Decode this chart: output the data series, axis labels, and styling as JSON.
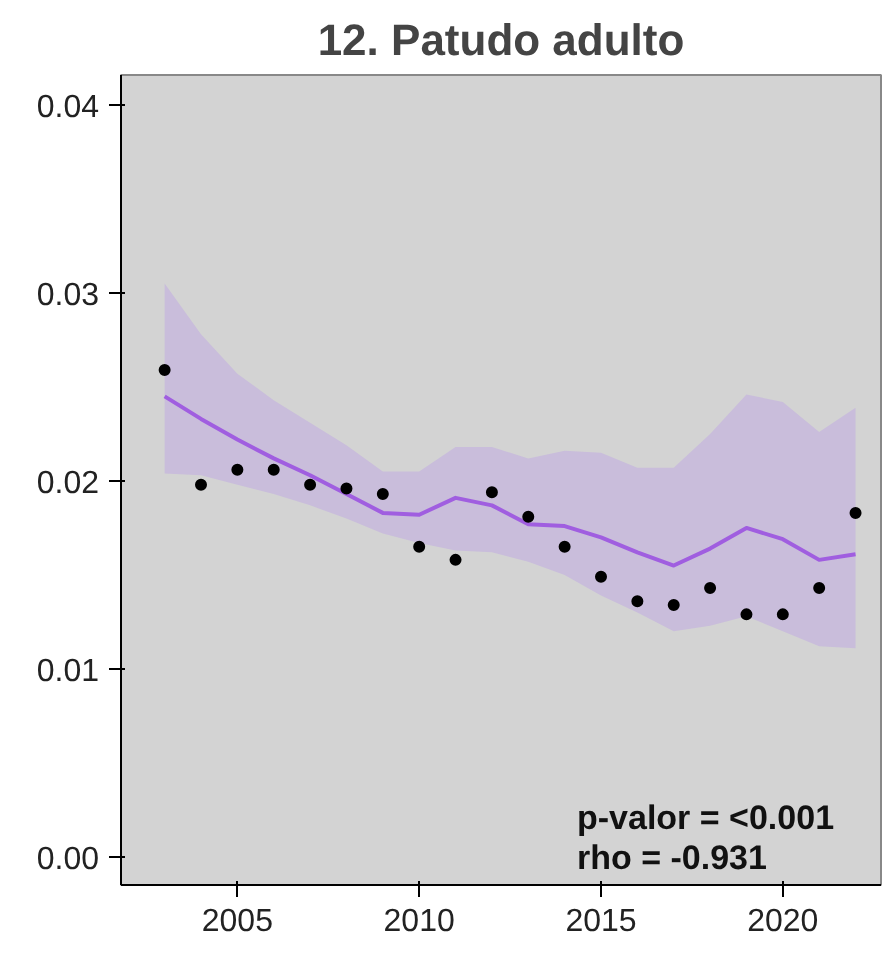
{
  "chart_data": {
    "type": "scatter",
    "title": "12. Patudo adulto",
    "x": [
      2003,
      2004,
      2005,
      2006,
      2007,
      2008,
      2009,
      2010,
      2011,
      2012,
      2013,
      2014,
      2015,
      2016,
      2017,
      2018,
      2019,
      2020,
      2021,
      2022
    ],
    "series": [
      {
        "color": "#000000",
        "marker": "circle",
        "values": [
          0.0259,
          0.0198,
          0.0206,
          0.0206,
          0.0198,
          0.0196,
          0.0193,
          0.0165,
          0.0158,
          0.0194,
          0.0181,
          0.0165,
          0.0149,
          0.0136,
          0.0134,
          0.0143,
          0.0129,
          0.0129,
          0.0143,
          0.0183
        ]
      },
      {
        "type": "line",
        "color": "#a05ee0",
        "line_style": "solid",
        "values": [
          0.0245,
          0.0233,
          0.0222,
          0.0212,
          0.0203,
          0.0193,
          0.0183,
          0.0182,
          0.0191,
          0.0187,
          0.0177,
          0.0176,
          0.017,
          0.0162,
          0.0155,
          0.0164,
          0.0175,
          0.0169,
          0.0158,
          0.0161
        ],
        "lower": [
          0.0204,
          0.0203,
          0.0198,
          0.0193,
          0.0187,
          0.018,
          0.0172,
          0.0167,
          0.0163,
          0.0162,
          0.0157,
          0.015,
          0.0139,
          0.013,
          0.012,
          0.0123,
          0.0128,
          0.012,
          0.0112,
          0.0111
        ],
        "upper": [
          0.0305,
          0.0278,
          0.0257,
          0.0243,
          0.0231,
          0.0219,
          0.0205,
          0.0205,
          0.0218,
          0.0218,
          0.0212,
          0.0216,
          0.0215,
          0.0207,
          0.0207,
          0.0225,
          0.0246,
          0.0242,
          0.0226,
          0.0239
        ]
      }
    ],
    "xlim": [
      2001.8,
      2022.7
    ],
    "ylim": [
      -0.0015,
      0.0416
    ],
    "xticks": [
      2005,
      2010,
      2015,
      2020
    ],
    "yticks": [
      {
        "value": 0,
        "label": "0.00"
      },
      {
        "value": 0.01,
        "label": "0.01"
      },
      {
        "value": 0.02,
        "label": "0.02"
      },
      {
        "value": 0.03,
        "label": "0.03"
      },
      {
        "value": 0.04,
        "label": "0.04"
      }
    ],
    "grid": false,
    "annotations": [
      "p-valor = <0.001",
      "rho = -0.931"
    ]
  }
}
